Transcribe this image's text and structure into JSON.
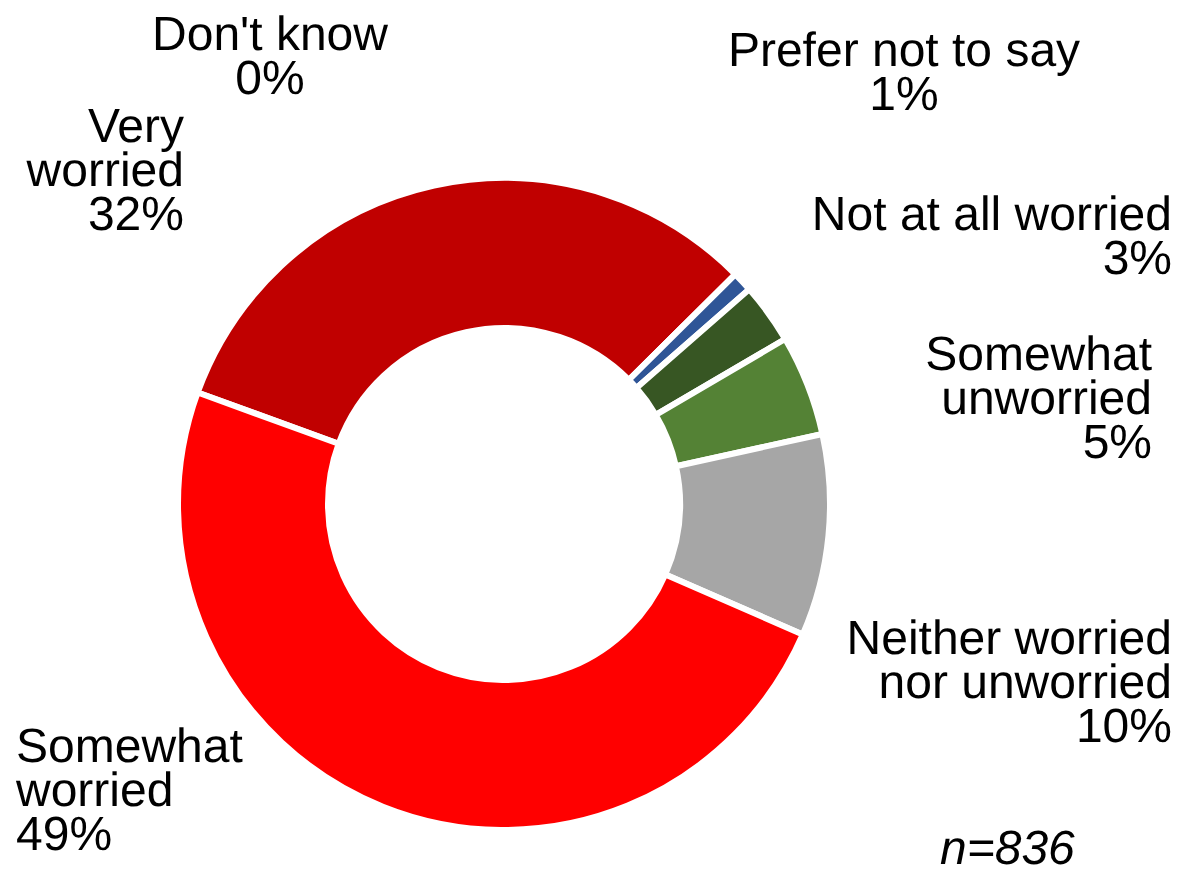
{
  "chart_data": {
    "type": "donut",
    "categories": [
      "Very worried",
      "Don't know",
      "Prefer not to say",
      "Not at all worried",
      "Somewhat unworried",
      "Neither worried nor unworried",
      "Somewhat worried"
    ],
    "values": [
      32,
      0,
      1,
      3,
      5,
      10,
      49
    ],
    "value_labels": [
      "32%",
      "0%",
      "1%",
      "3%",
      "5%",
      "10%",
      "49%"
    ],
    "colors": [
      "#c00000",
      "#7f7f7f",
      "#2f5597",
      "#375623",
      "#548235",
      "#a6a6a6",
      "#ff0000"
    ],
    "annotations": [
      "n=836"
    ]
  }
}
